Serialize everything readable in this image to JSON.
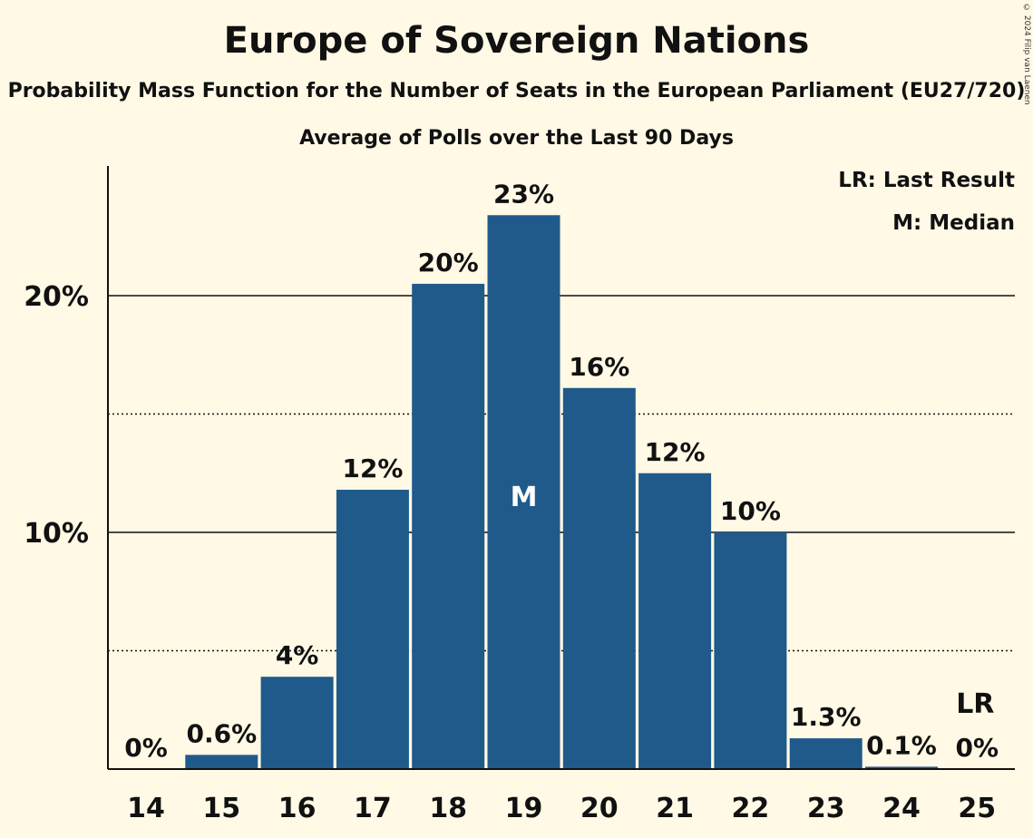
{
  "title": "Europe of Sovereign Nations",
  "subtitle": "Probability Mass Function for the Number of Seats in the European Parliament (EU27/720)",
  "subtitle2": "Average of Polls over the Last 90 Days",
  "copyright": "© 2024 Filip van Laenen",
  "legend": {
    "last_result": "LR: Last Result",
    "median": "M: Median"
  },
  "colors": {
    "bar": "#1f5a8b",
    "background": "#fff9e5"
  },
  "chart_data": {
    "type": "bar",
    "categories": [
      "14",
      "15",
      "16",
      "17",
      "18",
      "19",
      "20",
      "21",
      "22",
      "23",
      "24",
      "25"
    ],
    "values": [
      0,
      0.6,
      3.9,
      11.8,
      20.5,
      23.4,
      16.1,
      12.5,
      10.0,
      1.3,
      0.1,
      0
    ],
    "data_labels": [
      "0%",
      "0.6%",
      "4%",
      "12%",
      "20%",
      "23%",
      "16%",
      "12%",
      "10%",
      "1.3%",
      "0.1%",
      "0%"
    ],
    "yticks": [
      {
        "value": 10,
        "label": "10%"
      },
      {
        "value": 20,
        "label": "20%"
      }
    ],
    "minor_gridlines": [
      5,
      15
    ],
    "ylim": [
      0,
      25
    ],
    "median_category": "19",
    "median_marker": "M",
    "last_result_category": "25",
    "last_result_marker": "LR"
  }
}
